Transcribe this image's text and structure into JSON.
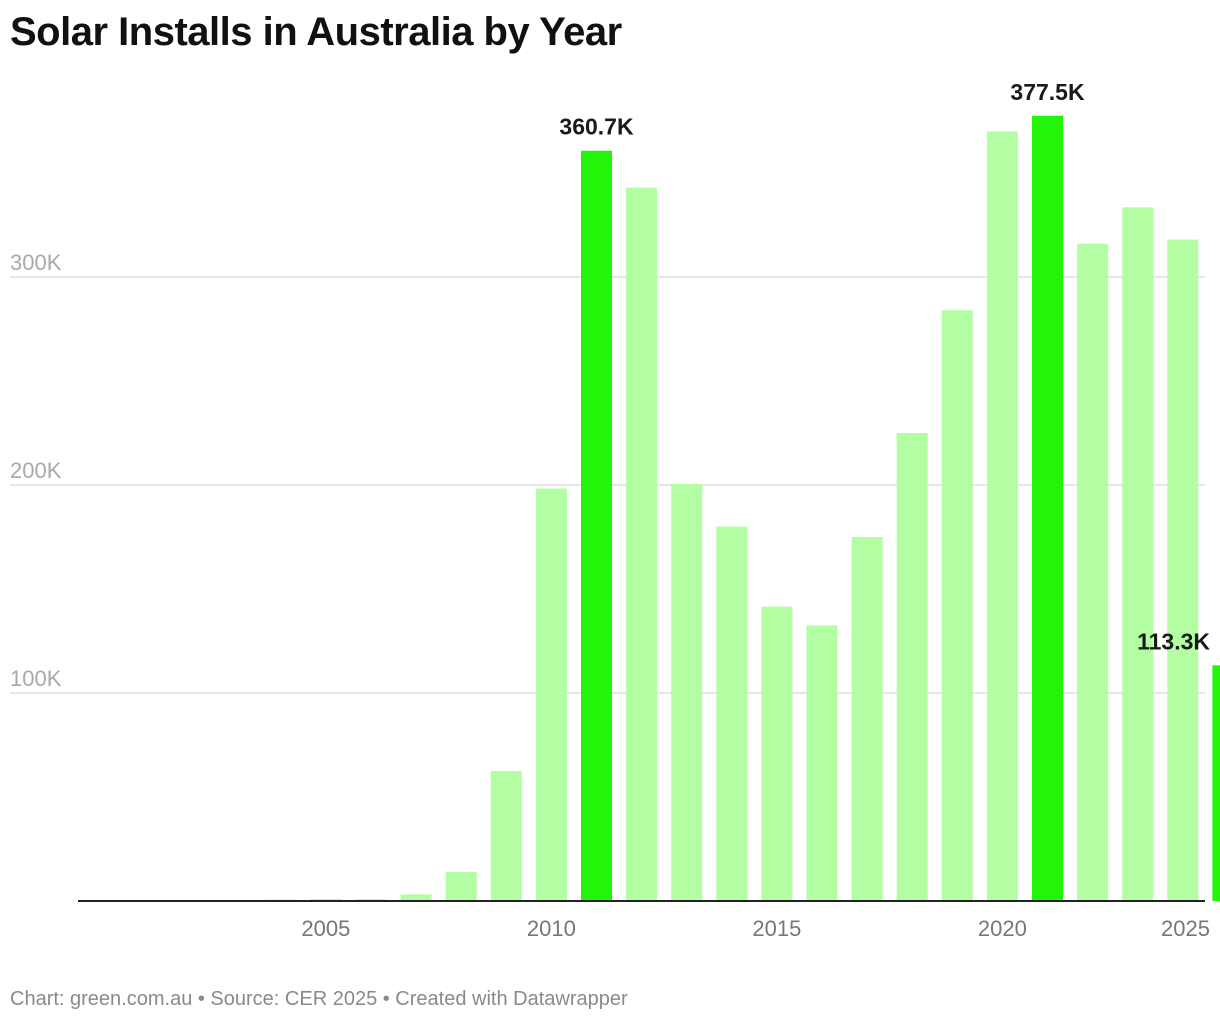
{
  "chart_data": {
    "type": "bar",
    "title": "Solar Installs in Australia by Year",
    "xlabel": "",
    "ylabel": "",
    "ylim": [
      0,
      400000
    ],
    "y_ticks": [
      100000,
      200000,
      300000
    ],
    "y_tick_labels": [
      "100K",
      "200K",
      "300K"
    ],
    "x_ticks": [
      2005,
      2010,
      2015,
      2020,
      2025
    ],
    "categories": [
      2001,
      2002,
      2003,
      2004,
      2005,
      2006,
      2007,
      2008,
      2009,
      2010,
      2011,
      2012,
      2013,
      2014,
      2015,
      2016,
      2017,
      2018,
      2019,
      2020,
      2021,
      2022,
      2023,
      2024,
      2025
    ],
    "values": [
      80,
      250,
      350,
      700,
      1000,
      900,
      3200,
      13900,
      62500,
      198300,
      360700,
      343000,
      200500,
      180000,
      141500,
      132500,
      175000,
      225000,
      284000,
      370000,
      377500,
      316000,
      333500,
      318000,
      113300
    ],
    "highlighted": [
      2011,
      2021,
      2025
    ],
    "data_labels": [
      {
        "year": 2011,
        "label": "360.7K"
      },
      {
        "year": 2021,
        "label": "377.5K"
      },
      {
        "year": 2025,
        "label": "113.3K"
      }
    ],
    "colors": {
      "bar": "#b3fea3",
      "highlight": "#23f50a",
      "grid": "#dedede",
      "axis": "#222222"
    }
  },
  "footer": "Chart: green.com.au • Source: CER 2025 • Created with Datawrapper"
}
